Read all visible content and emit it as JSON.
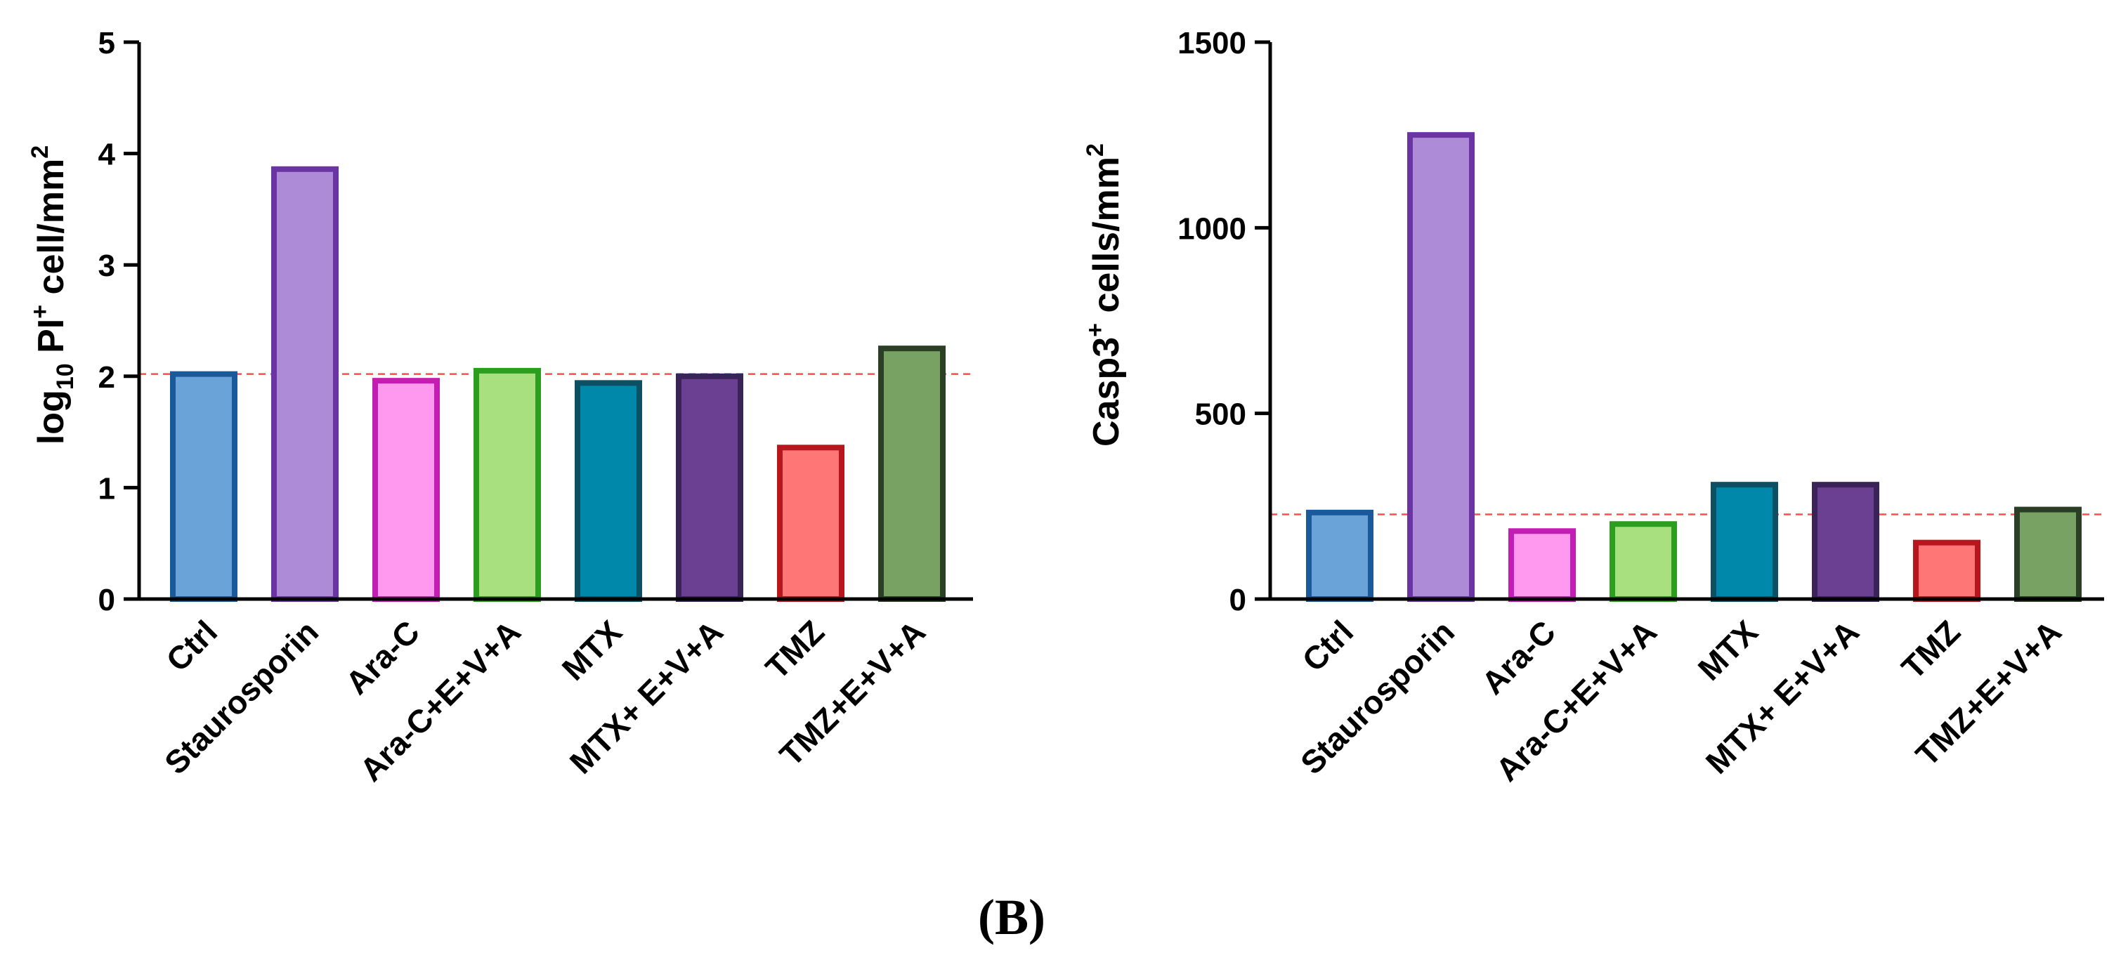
{
  "panel_label": "(B)",
  "chart_data": [
    {
      "type": "bar",
      "categories": [
        "Ctrl",
        "Staurosporin",
        "Ara-C",
        "Ara-C+E+V+A",
        "MTX",
        "MTX+ E+V+A",
        "TMZ",
        "TMZ+E+V+A"
      ],
      "values": [
        2.02,
        3.86,
        1.96,
        2.05,
        1.94,
        2.0,
        1.36,
        2.25
      ],
      "ylabel": {
        "prefix": "log",
        "sub": "10",
        "mid": " PI",
        "sup": "+",
        "rest": " cell/mm",
        "sup2": "2"
      },
      "ylim": [
        0,
        5
      ],
      "yticks": [
        0,
        1,
        2,
        3,
        4,
        5
      ],
      "reference_line": 2.02,
      "fill_colors": [
        "#6aa3d8",
        "#ad8bd6",
        "#ff99f0",
        "#a8e07f",
        "#0088aa",
        "#6b3f91",
        "#ff7676",
        "#78a264"
      ],
      "edge_colors": [
        "#1b5a9a",
        "#6a34a3",
        "#c21eb4",
        "#2c9e1f",
        "#0d4f63",
        "#3a2356",
        "#b7161c",
        "#2b3f26"
      ]
    },
    {
      "type": "bar",
      "categories": [
        "Ctrl",
        "Staurosporin",
        "Ara-C",
        "Ara-C+E+V+A",
        "MTX",
        "MTX+ E+V+A",
        "TMZ",
        "TMZ+E+V+A"
      ],
      "values": [
        233,
        1250,
        183,
        202,
        308,
        308,
        152,
        241
      ],
      "ylabel": {
        "main": "Casp3",
        "sup": "+",
        "rest": " cells/mm",
        "sup2": "2"
      },
      "ylim": [
        0,
        1500
      ],
      "yticks": [
        0,
        500,
        1000,
        1500
      ],
      "reference_line": 228,
      "fill_colors": [
        "#6aa3d8",
        "#ad8bd6",
        "#ff99f0",
        "#a8e07f",
        "#0088aa",
        "#6b3f91",
        "#ff7676",
        "#78a264"
      ],
      "edge_colors": [
        "#1b5a9a",
        "#6a34a3",
        "#c21eb4",
        "#2c9e1f",
        "#0d4f63",
        "#3a2356",
        "#b7161c",
        "#2b3f26"
      ]
    }
  ]
}
